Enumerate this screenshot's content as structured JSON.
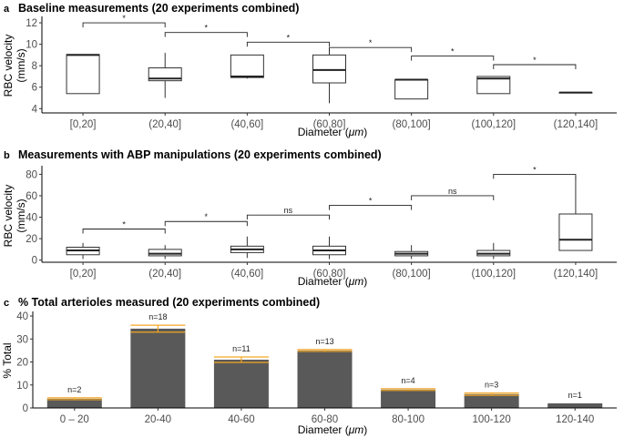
{
  "panels": {
    "a": {
      "label": "a",
      "title": "Baseline measurements (20 experiments combined)",
      "xlabel_text": "Diameter (",
      "xlabel_unit": "μm",
      "xlabel_end": ")",
      "ylabel_line1": "RBC velocity",
      "ylabel_line2": "(mm/s)"
    },
    "b": {
      "label": "b",
      "title": "Measurements with ABP manipulations (20 experiments combined)",
      "xlabel_text": "Diameter (",
      "xlabel_unit": "μm",
      "xlabel_end": ")",
      "ylabel_line1": "RBC velocity",
      "ylabel_line2": "(mm/s)"
    },
    "c": {
      "label": "c",
      "title": "% Total arterioles measured (20 experiments combined)",
      "xlabel_text": "Diameter (",
      "xlabel_unit": "μm",
      "xlabel_end": ")",
      "ylabel_line1": "% Total"
    }
  },
  "chart_data": [
    {
      "type": "box",
      "title": "Baseline measurements (20 experiments combined)",
      "xlabel": "Diameter (μm)",
      "ylabel": "RBC velocity (mm/s)",
      "categories": [
        "[0,20]",
        "(20,40]",
        "(40,60]",
        "(60,80]",
        "(80,100]",
        "(100,120]",
        "(120,140]"
      ],
      "yticks": [
        4,
        6,
        8,
        10,
        12
      ],
      "ylim": [
        3.6,
        12.6
      ],
      "boxes": [
        {
          "min": 5.4,
          "q1": 5.4,
          "median": 9.0,
          "q3": 9.05,
          "max": 9.05
        },
        {
          "min": 5.0,
          "q1": 6.6,
          "median": 6.8,
          "q3": 7.8,
          "max": 9.2
        },
        {
          "min": 6.8,
          "q1": 6.9,
          "median": 7.0,
          "q3": 9.0,
          "max": 9.0
        },
        {
          "min": 4.5,
          "q1": 6.4,
          "median": 7.6,
          "q3": 9.0,
          "max": 9.6
        },
        {
          "min": 4.9,
          "q1": 4.9,
          "median": 6.7,
          "q3": 6.7,
          "max": 6.7
        },
        {
          "min": 5.4,
          "q1": 5.4,
          "median": 6.8,
          "q3": 7.0,
          "max": 7.0
        },
        {
          "min": 5.5,
          "q1": 5.5,
          "median": 5.5,
          "q3": 5.5,
          "max": 5.5
        }
      ],
      "comparisons": [
        {
          "from": 0,
          "to": 1,
          "label": "*"
        },
        {
          "from": 1,
          "to": 2,
          "label": "*"
        },
        {
          "from": 2,
          "to": 3,
          "label": "*"
        },
        {
          "from": 3,
          "to": 4,
          "label": "*"
        },
        {
          "from": 4,
          "to": 5,
          "label": "*"
        },
        {
          "from": 5,
          "to": 6,
          "label": "*"
        }
      ],
      "comparison_y": [
        12.0,
        11.1,
        10.2,
        9.7,
        8.9,
        8.1
      ],
      "grid": false
    },
    {
      "type": "box",
      "title": "Measurements with ABP manipulations (20 experiments combined)",
      "xlabel": "Diameter (μm)",
      "ylabel": "RBC velocity (mm/s)",
      "categories": [
        "[0,20]",
        "(20,40]",
        "(40,60]",
        "(60,80]",
        "(80,100]",
        "(100,120]",
        "(120,140]"
      ],
      "yticks": [
        0,
        20,
        40,
        60,
        80
      ],
      "ylim": [
        -2,
        88
      ],
      "boxes": [
        {
          "min": 1,
          "q1": 5,
          "median": 9,
          "q3": 12,
          "max": 16
        },
        {
          "min": 1,
          "q1": 4,
          "median": 6,
          "q3": 10,
          "max": 14
        },
        {
          "min": 2,
          "q1": 7,
          "median": 10,
          "q3": 13,
          "max": 22
        },
        {
          "min": 1,
          "q1": 5,
          "median": 9,
          "q3": 13,
          "max": 22
        },
        {
          "min": 1,
          "q1": 4,
          "median": 6,
          "q3": 8,
          "max": 14
        },
        {
          "min": 1,
          "q1": 4,
          "median": 6,
          "q3": 9,
          "max": 16
        },
        {
          "min": 9,
          "q1": 9,
          "median": 19,
          "q3": 43,
          "max": 78
        }
      ],
      "comparisons": [
        {
          "from": 0,
          "to": 1,
          "label": "*"
        },
        {
          "from": 1,
          "to": 2,
          "label": "*"
        },
        {
          "from": 2,
          "to": 3,
          "label": "ns"
        },
        {
          "from": 3,
          "to": 4,
          "label": "*"
        },
        {
          "from": 4,
          "to": 5,
          "label": "ns"
        },
        {
          "from": 5,
          "to": 6,
          "label": "*"
        }
      ],
      "comparison_y": [
        29,
        36,
        42,
        51,
        60,
        80
      ],
      "grid": false
    },
    {
      "type": "bar",
      "title": "% Total arterioles measured (20 experiments combined)",
      "xlabel": "Diameter (μm)",
      "ylabel": "% Total",
      "categories": [
        "0 – 20",
        "20-40",
        "40-60",
        "60-80",
        "80-100",
        "100-120",
        "120-140"
      ],
      "values": [
        4,
        34.5,
        21,
        25,
        8,
        6,
        2
      ],
      "error": [
        0.4,
        1.5,
        1.2,
        0.4,
        0.4,
        0.5,
        0
      ],
      "counts": [
        "n=2",
        "n=18",
        "n=11",
        "n=13",
        "n=4",
        "n=3",
        "n=1"
      ],
      "yticks": [
        0,
        10,
        20,
        30,
        40
      ],
      "ylim": [
        0,
        42
      ],
      "bar_color": "#595959",
      "error_color": "#f5a623",
      "grid": false
    }
  ]
}
